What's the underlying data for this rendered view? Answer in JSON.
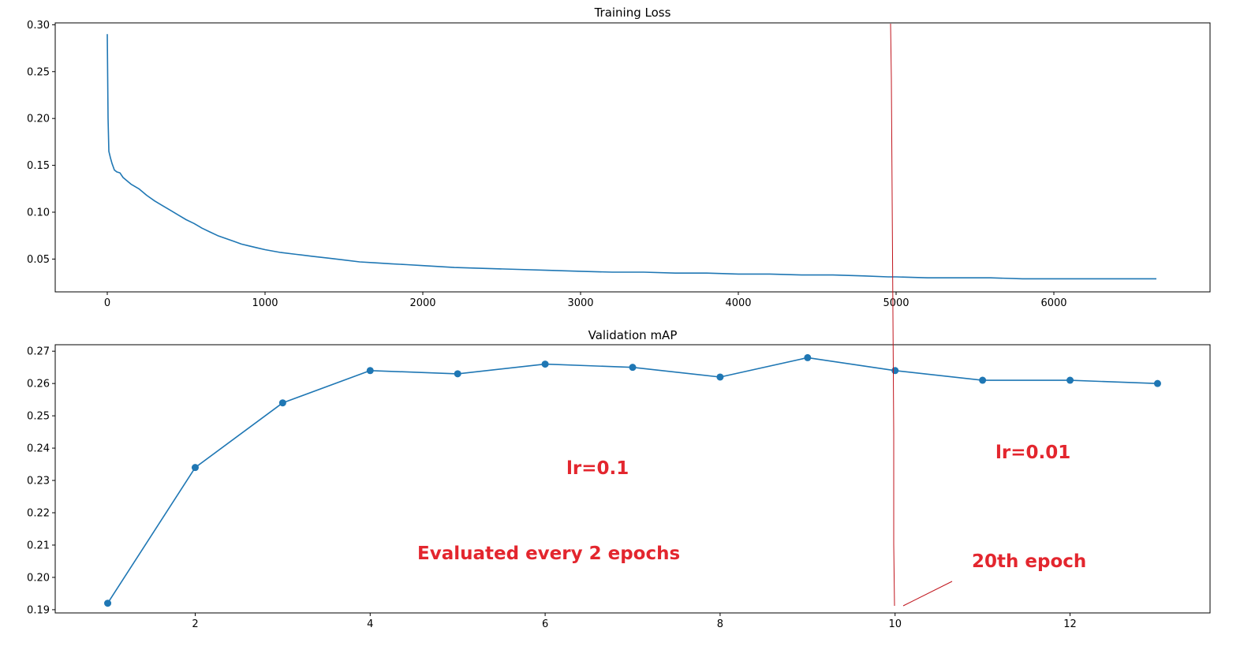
{
  "colors": {
    "series": "#1f77b4",
    "annotation": "#e3262e",
    "marker_line": "#c0141c"
  },
  "chart_data": [
    {
      "type": "line",
      "title": "Training Loss",
      "xlabel": "",
      "ylabel": "",
      "xlim": [
        -330,
        6990
      ],
      "ylim": [
        0.015,
        0.302
      ],
      "xticks": [
        0,
        1000,
        2000,
        3000,
        4000,
        5000,
        6000
      ],
      "yticks": [
        0.05,
        0.1,
        0.15,
        0.2,
        0.25,
        0.3
      ],
      "ytick_format": 2,
      "grid": false,
      "legend": "none",
      "series": [
        {
          "x": [
            0,
            5,
            10,
            20,
            30,
            45,
            60,
            80,
            100,
            150,
            200,
            250,
            300,
            350,
            400,
            450,
            500,
            550,
            600,
            650,
            700,
            750,
            800,
            850,
            900,
            950,
            1000,
            1100,
            1200,
            1300,
            1400,
            1500,
            1600,
            1700,
            1800,
            1900,
            2000,
            2200,
            2400,
            2600,
            2800,
            3000,
            3200,
            3400,
            3600,
            3800,
            4000,
            4200,
            4400,
            4600,
            4800,
            4950,
            5000,
            5200,
            5400,
            5600,
            5800,
            6000,
            6200,
            6400,
            6600,
            6650
          ],
          "y": [
            0.29,
            0.2,
            0.165,
            0.158,
            0.152,
            0.145,
            0.143,
            0.142,
            0.137,
            0.13,
            0.125,
            0.118,
            0.112,
            0.107,
            0.102,
            0.097,
            0.092,
            0.088,
            0.083,
            0.079,
            0.075,
            0.072,
            0.069,
            0.066,
            0.064,
            0.062,
            0.06,
            0.057,
            0.055,
            0.053,
            0.051,
            0.049,
            0.047,
            0.046,
            0.045,
            0.044,
            0.043,
            0.041,
            0.04,
            0.039,
            0.038,
            0.037,
            0.036,
            0.036,
            0.035,
            0.035,
            0.034,
            0.034,
            0.033,
            0.033,
            0.032,
            0.031,
            0.031,
            0.03,
            0.03,
            0.03,
            0.029,
            0.029,
            0.029,
            0.029,
            0.029,
            0.029
          ]
        }
      ]
    },
    {
      "type": "line",
      "title": "Validation mAP",
      "xlabel": "",
      "ylabel": "",
      "xlim": [
        0.4,
        13.6
      ],
      "ylim": [
        0.189,
        0.272
      ],
      "xticks": [
        2,
        4,
        6,
        8,
        10,
        12
      ],
      "yticks": [
        0.19,
        0.2,
        0.21,
        0.22,
        0.23,
        0.24,
        0.25,
        0.26,
        0.27
      ],
      "ytick_format": 2,
      "grid": false,
      "legend": "none",
      "markers": true,
      "series": [
        {
          "x": [
            1,
            2,
            3,
            4,
            5,
            6,
            7,
            8,
            9,
            10,
            11,
            12,
            13
          ],
          "y": [
            0.192,
            0.234,
            0.254,
            0.264,
            0.263,
            0.266,
            0.265,
            0.262,
            0.268,
            0.264,
            0.261,
            0.261,
            0.26
          ]
        }
      ],
      "annotations": [
        {
          "text": "lr=0.1"
        },
        {
          "text": "lr=0.01"
        },
        {
          "text": "Evaluated every 2 epochs"
        },
        {
          "text": "20th epoch"
        }
      ]
    }
  ]
}
